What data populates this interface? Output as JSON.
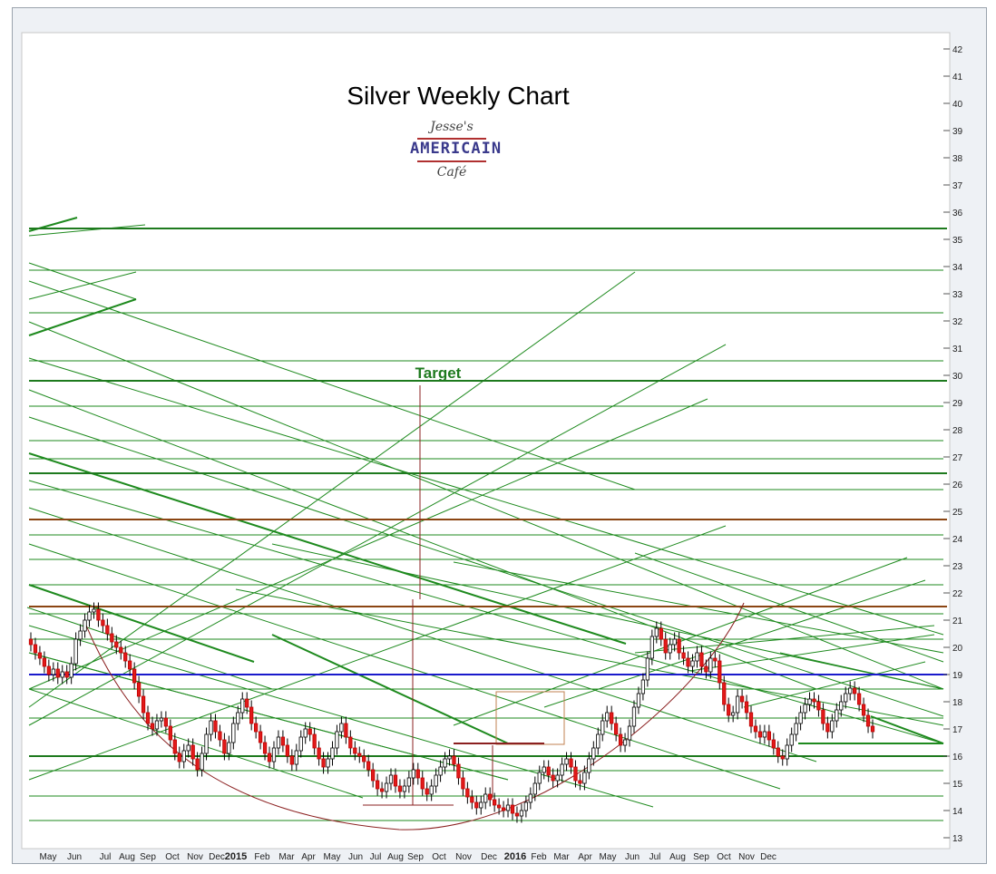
{
  "chart_data": {
    "type": "candlestick",
    "title": "Silver Weekly Chart",
    "annotations": [
      "Target"
    ],
    "logo": {
      "line1": "Jesse's",
      "line2": "AMERICAIN",
      "line3": "Café"
    },
    "ylim": [
      12.6,
      42.6
    ],
    "y_ticks": [
      13,
      14,
      15,
      16,
      17,
      18,
      19,
      20,
      21,
      22,
      23,
      24,
      25,
      26,
      27,
      28,
      29,
      30,
      31,
      32,
      33,
      34,
      35,
      36,
      37,
      38,
      39,
      40,
      41,
      42
    ],
    "x_ticks": [
      "May",
      "Jun",
      "Jul",
      "Aug",
      "Sep",
      "Oct",
      "Nov",
      "Dec",
      "2015",
      "Feb",
      "Mar",
      "Apr",
      "May",
      "Jun",
      "Jul",
      "Aug",
      "Sep",
      "Oct",
      "Nov",
      "Dec",
      "2016",
      "Feb",
      "Mar",
      "Apr",
      "May",
      "Jun",
      "Jul",
      "Aug",
      "Sep",
      "Oct",
      "Nov",
      "Dec"
    ],
    "grid": false,
    "levels": [
      {
        "value": 35.4,
        "color": "#1e7a1e"
      },
      {
        "value": 29.8,
        "color": "#1e7a1e"
      },
      {
        "value": 26.4,
        "color": "#1e7a1e"
      },
      {
        "value": 24.7,
        "color": "#8b4513"
      },
      {
        "value": 21.5,
        "color": "#8b4513"
      },
      {
        "value": 19.0,
        "color": "#1a1acc"
      },
      {
        "value": 16.0,
        "color": "#1e7a1e"
      }
    ],
    "weekly_close": [
      20.1,
      19.8,
      19.6,
      19.3,
      19.0,
      19.2,
      18.9,
      19.1,
      18.9,
      19.4,
      20.3,
      20.6,
      21.0,
      21.3,
      21.4,
      21.0,
      20.8,
      20.5,
      20.2,
      20.0,
      19.8,
      19.5,
      19.2,
      18.7,
      18.2,
      17.6,
      17.2,
      17.0,
      17.3,
      17.4,
      17.1,
      16.6,
      16.1,
      15.8,
      16.2,
      16.4,
      15.9,
      15.5,
      16.1,
      16.8,
      17.3,
      16.9,
      16.6,
      16.1,
      16.5,
      17.2,
      17.6,
      18.1,
      17.8,
      17.2,
      16.9,
      16.5,
      16.1,
      15.8,
      16.3,
      16.7,
      16.4,
      16.0,
      15.7,
      16.2,
      16.7,
      17.0,
      16.8,
      16.3,
      15.9,
      15.6,
      15.9,
      16.3,
      16.9,
      17.2,
      16.7,
      16.3,
      16.1,
      16.0,
      15.8,
      15.5,
      15.1,
      14.8,
      14.7,
      15.0,
      15.3,
      14.9,
      14.7,
      14.9,
      15.2,
      15.5,
      15.2,
      14.8,
      14.6,
      14.9,
      15.3,
      15.6,
      15.9,
      16.0,
      15.7,
      15.2,
      14.8,
      14.5,
      14.3,
      14.1,
      14.3,
      14.6,
      14.4,
      14.2,
      14.1,
      14.0,
      14.2,
      13.9,
      13.8,
      14.0,
      14.3,
      14.6,
      15.0,
      15.4,
      15.6,
      15.3,
      15.1,
      15.3,
      15.7,
      15.9,
      15.6,
      15.1,
      15.0,
      15.4,
      15.9,
      16.3,
      16.8,
      17.3,
      17.6,
      17.2,
      16.8,
      16.4,
      16.6,
      17.1,
      17.8,
      18.3,
      18.8,
      19.6,
      20.4,
      20.7,
      20.3,
      19.8,
      20.1,
      20.3,
      19.8,
      19.6,
      19.3,
      19.5,
      19.8,
      19.3,
      19.1,
      19.6,
      19.5,
      18.7,
      17.9,
      17.5,
      17.6,
      18.2,
      18.0,
      17.6,
      17.1,
      16.9,
      16.7,
      16.9,
      16.6,
      16.3,
      16.0,
      15.9,
      16.4,
      16.8,
      17.2,
      17.6,
      17.9,
      18.1,
      18.0,
      17.7,
      17.2,
      16.9,
      17.3,
      17.7,
      18.0,
      18.3,
      18.5,
      18.3,
      17.9,
      17.5,
      17.1,
      16.9
    ]
  }
}
